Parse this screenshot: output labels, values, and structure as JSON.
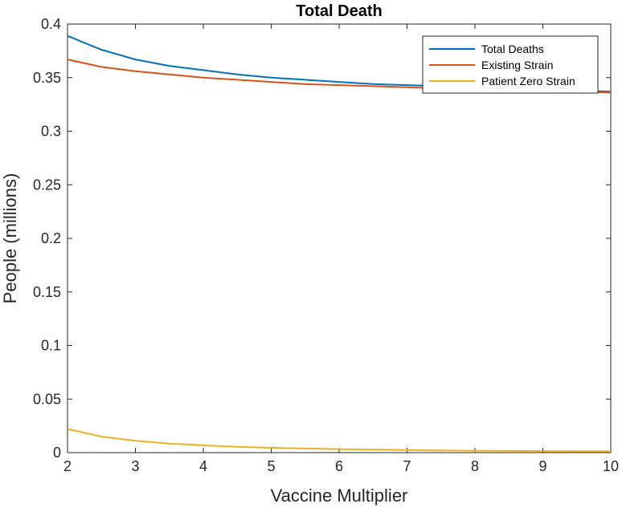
{
  "chart_data": {
    "type": "line",
    "title": "Total Death",
    "xlabel": "Vaccine Multiplier",
    "ylabel": "People (millions)",
    "xlim": [
      2,
      10
    ],
    "ylim": [
      0,
      0.4
    ],
    "x_ticks": [
      "2",
      "3",
      "4",
      "5",
      "6",
      "7",
      "8",
      "9",
      "10"
    ],
    "y_ticks": [
      "0",
      "0.05",
      "0.1",
      "0.15",
      "0.2",
      "0.25",
      "0.3",
      "0.35",
      "0.4"
    ],
    "grid": false,
    "legend_position": "top-right",
    "x": [
      2,
      2.5,
      3,
      3.5,
      4,
      4.5,
      5,
      5.5,
      6,
      6.5,
      7,
      7.5,
      8,
      8.5,
      9,
      9.5,
      10
    ],
    "series": [
      {
        "name": "Total Deaths",
        "color": "#0072BD",
        "values": [
          0.389,
          0.376,
          0.367,
          0.361,
          0.357,
          0.353,
          0.35,
          0.348,
          0.346,
          0.344,
          0.343,
          0.342,
          0.341,
          0.34,
          0.339,
          0.338,
          0.337
        ]
      },
      {
        "name": "Existing Strain",
        "color": "#D95319",
        "values": [
          0.367,
          0.36,
          0.356,
          0.353,
          0.35,
          0.348,
          0.346,
          0.344,
          0.343,
          0.342,
          0.341,
          0.34,
          0.339,
          0.338,
          0.337,
          0.337,
          0.336
        ]
      },
      {
        "name": "Patient Zero Strain",
        "color": "#EDB120",
        "values": [
          0.022,
          0.015,
          0.011,
          0.0085,
          0.0068,
          0.0055,
          0.0045,
          0.0038,
          0.0032,
          0.0028,
          0.0024,
          0.0021,
          0.0018,
          0.0016,
          0.0014,
          0.0013,
          0.0012
        ]
      }
    ]
  }
}
